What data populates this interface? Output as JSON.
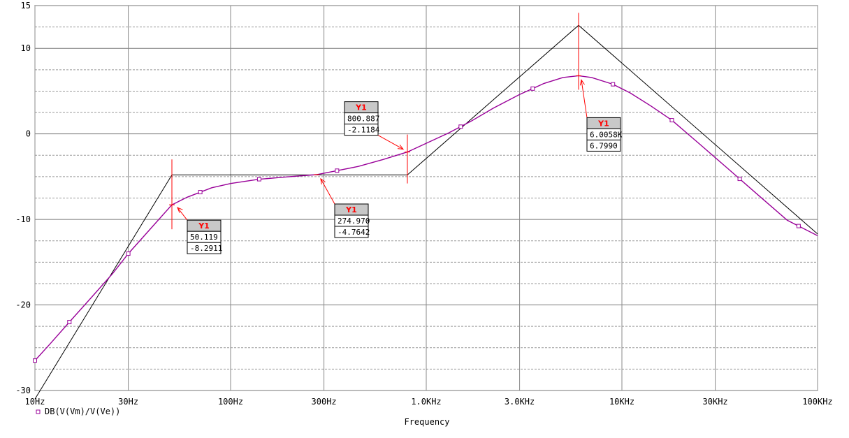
{
  "chart_data": {
    "type": "line",
    "title": "",
    "xlabel": "Frequency",
    "ylabel": "",
    "x_scale": "log",
    "xlim": [
      10,
      100000
    ],
    "ylim": [
      -30,
      15
    ],
    "x_ticks": [
      {
        "value": 10,
        "label": "10Hz"
      },
      {
        "value": 30,
        "label": "30Hz"
      },
      {
        "value": 100,
        "label": "100Hz"
      },
      {
        "value": 300,
        "label": "300Hz"
      },
      {
        "value": 1000,
        "label": "1.0KHz"
      },
      {
        "value": 3000,
        "label": "3.0KHz"
      },
      {
        "value": 10000,
        "label": "10KHz"
      },
      {
        "value": 30000,
        "label": "30KHz"
      },
      {
        "value": 100000,
        "label": "100KHz"
      }
    ],
    "y_ticks": [
      {
        "value": 15,
        "label": "15"
      },
      {
        "value": 10,
        "label": "10"
      },
      {
        "value": 0,
        "label": "0"
      },
      {
        "value": -10,
        "label": "-10"
      },
      {
        "value": -20,
        "label": "-20"
      },
      {
        "value": -30,
        "label": "-30"
      }
    ],
    "grid": true,
    "legend_position": "bottom-left",
    "series": [
      {
        "name": "DB(V(Vm)/V(Ve))",
        "color": "#990099",
        "x": [
          10,
          12,
          15,
          20,
          25,
          30,
          40,
          50.119,
          60,
          80,
          100,
          140,
          200,
          274.97,
          350,
          450,
          600,
          800.887,
          1000,
          1300,
          1700,
          2200,
          3000,
          4000,
          5000,
          6005.8,
          7000,
          9000,
          11000,
          14000,
          18000,
          25000,
          35000,
          50000,
          70000,
          100000
        ],
        "values": [
          -26.5,
          -24.5,
          -22.0,
          -18.8,
          -16.3,
          -14.0,
          -10.8,
          -8.2911,
          -7.4,
          -6.3,
          -5.8,
          -5.3,
          -5.0,
          -4.7642,
          -4.3,
          -3.8,
          -3.0,
          -2.1184,
          -1.1,
          0.1,
          1.5,
          3.0,
          4.6,
          5.9,
          6.6,
          6.799,
          6.6,
          5.8,
          4.8,
          3.3,
          1.6,
          -1.2,
          -4.1,
          -7.2,
          -10.1,
          -11.9
        ]
      }
    ],
    "asymptote": {
      "color": "#000000",
      "x": [
        10,
        50.119,
        800.887,
        6005.8,
        100000
      ],
      "values": [
        -31.0,
        -4.8,
        -4.8,
        12.7,
        -11.7
      ]
    },
    "point_markers_x": [
      10,
      15,
      30,
      70,
      140,
      350,
      1500,
      3500,
      9000,
      18000,
      40000,
      80000
    ],
    "cursors": [
      {
        "title": "Y1",
        "x_label": "50.119",
        "y_label": "-8.2911",
        "x": 50.119,
        "y": -8.2911
      },
      {
        "title": "Y1",
        "x_label": "274.970",
        "y_label": "-4.7642",
        "x": 274.97,
        "y": -4.7642
      },
      {
        "title": "Y1",
        "x_label": "800.887",
        "y_label": "-2.1184",
        "x": 800.887,
        "y": -2.1184
      },
      {
        "title": "Y1",
        "x_label": "6.0058K",
        "y_label": "6.7990",
        "x": 6005.8,
        "y": 6.799
      }
    ]
  }
}
